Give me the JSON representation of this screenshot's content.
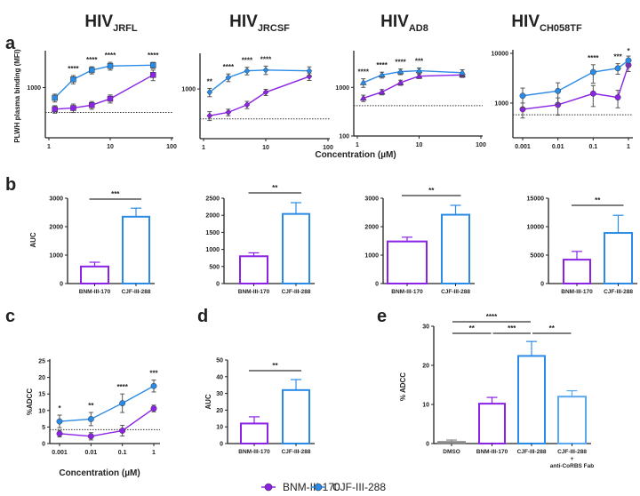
{
  "figure": {
    "panel_labels": {
      "a": "a",
      "b": "b",
      "c": "c",
      "d": "d",
      "e": "e"
    },
    "a_xlabel": "Concentration (µM)",
    "c_xlabel": "Concentration (µM)",
    "legend": [
      {
        "name": "BNM-III-170",
        "color": "#8b22e6"
      },
      {
        "name": "CJF-III-288",
        "color": "#2a8be6"
      }
    ]
  },
  "chart_data": [
    {
      "id": "a-jrfl",
      "type": "line",
      "title_main": "HIV",
      "title_sub": "JRFL",
      "ylabel": "PLWH plasma binding (MFI)",
      "xscale": "log",
      "yscale": "log",
      "xlim": [
        1,
        100
      ],
      "ylim": [
        200,
        3000
      ],
      "xticks": [
        1,
        10,
        100
      ],
      "yticks": [
        1000
      ],
      "threshold": 450,
      "x": [
        1.25,
        2.5,
        5,
        10,
        50
      ],
      "series": [
        {
          "name": "BNM-III-170",
          "values": [
            500,
            520,
            570,
            700,
            1500
          ],
          "err": [
            60,
            70,
            70,
            90,
            250
          ]
        },
        {
          "name": "CJF-III-288",
          "values": [
            720,
            1300,
            1750,
            2000,
            2050
          ],
          "err": [
            90,
            170,
            200,
            250,
            200
          ]
        }
      ],
      "significance": [
        "",
        "****",
        "****",
        "****",
        "****"
      ]
    },
    {
      "id": "a-jrcsf",
      "type": "line",
      "title_main": "HIV",
      "title_sub": "JRCSF",
      "ylabel": "",
      "xscale": "log",
      "yscale": "log",
      "xlim": [
        1,
        100
      ],
      "ylim": [
        200,
        3000
      ],
      "xticks": [
        1,
        10,
        100
      ],
      "yticks": [
        1000
      ],
      "threshold": 380,
      "x": [
        1.25,
        2.5,
        5,
        10,
        50
      ],
      "series": [
        {
          "name": "BNM-III-170",
          "values": [
            420,
            470,
            600,
            900,
            1500
          ],
          "err": [
            60,
            50,
            70,
            90,
            180
          ]
        },
        {
          "name": "CJF-III-288",
          "values": [
            900,
            1450,
            1800,
            1850,
            1800
          ],
          "err": [
            120,
            180,
            220,
            250,
            250
          ]
        }
      ],
      "significance": [
        "**",
        "****",
        "****",
        "****",
        ""
      ]
    },
    {
      "id": "a-ad8",
      "type": "line",
      "title_main": "HIV",
      "title_sub": "AD8",
      "ylabel": "",
      "xscale": "log",
      "yscale": "log",
      "xlim": [
        1,
        100
      ],
      "ylim": [
        100,
        5000
      ],
      "xticks": [
        1,
        10,
        100
      ],
      "yticks": [
        100,
        1000
      ],
      "threshold": 420,
      "x": [
        1.25,
        2.5,
        5,
        10,
        50
      ],
      "series": [
        {
          "name": "BNM-III-170",
          "values": [
            600,
            800,
            1250,
            1700,
            1800
          ],
          "err": [
            90,
            100,
            150,
            180,
            200
          ]
        },
        {
          "name": "CJF-III-288",
          "values": [
            1250,
            1800,
            2100,
            2200,
            2000
          ],
          "err": [
            250,
            250,
            280,
            300,
            300
          ]
        }
      ],
      "significance": [
        "****",
        "****",
        "****",
        "***",
        ""
      ]
    },
    {
      "id": "a-ch058tf",
      "type": "line",
      "title_main": "HIV",
      "title_sub": "CH058TF",
      "ylabel": "",
      "xscale": "log",
      "yscale": "log",
      "xlim": [
        0.001,
        1
      ],
      "ylim": [
        200,
        10000
      ],
      "xticks": [
        0.001,
        0.01,
        0.1,
        1
      ],
      "yticks": [
        1000,
        10000
      ],
      "threshold": 580,
      "x": [
        0.001,
        0.01,
        0.1,
        0.5,
        1
      ],
      "series": [
        {
          "name": "BNM-III-170",
          "values": [
            750,
            920,
            1550,
            1300,
            5800
          ],
          "err": [
            250,
            350,
            700,
            500,
            1500
          ]
        },
        {
          "name": "CJF-III-288",
          "values": [
            1400,
            1750,
            4200,
            5000,
            7200
          ],
          "err": [
            600,
            800,
            1700,
            1200,
            1600
          ]
        }
      ],
      "significance": [
        "",
        "",
        "****",
        "***",
        "*"
      ]
    },
    {
      "id": "b-jrfl",
      "type": "bar",
      "ylabel": "AUC",
      "categories": [
        "BNM-III-170",
        "CJF-III-288"
      ],
      "values": [
        600,
        2350
      ],
      "err": [
        150,
        300
      ],
      "ylim": [
        0,
        3000
      ],
      "yticks": [
        0,
        1000,
        2000,
        3000
      ],
      "colors": [
        "#8b22e6",
        "#2a8be6"
      ],
      "comparisons": [
        {
          "from": 0,
          "to": 1,
          "label": "***"
        }
      ]
    },
    {
      "id": "b-jrcsf",
      "type": "bar",
      "ylabel": "",
      "categories": [
        "BNM-III-170",
        "CJF-III-288"
      ],
      "values": [
        800,
        2040
      ],
      "err": [
        100,
        330
      ],
      "ylim": [
        0,
        2500
      ],
      "yticks": [
        0,
        500,
        1000,
        1500,
        2000,
        2500
      ],
      "colors": [
        "#8b22e6",
        "#2a8be6"
      ],
      "comparisons": [
        {
          "from": 0,
          "to": 1,
          "label": "**"
        }
      ]
    },
    {
      "id": "b-ad8",
      "type": "bar",
      "ylabel": "",
      "categories": [
        "BNM-III-170",
        "CJF-III-288"
      ],
      "values": [
        1480,
        2420
      ],
      "err": [
        150,
        330
      ],
      "ylim": [
        0,
        3000
      ],
      "yticks": [
        0,
        1000,
        2000,
        3000
      ],
      "colors": [
        "#8b22e6",
        "#2a8be6"
      ],
      "comparisons": [
        {
          "from": 0,
          "to": 1,
          "label": "**"
        }
      ]
    },
    {
      "id": "b-ch058tf",
      "type": "bar",
      "ylabel": "",
      "categories": [
        "BNM-III-170",
        "CJF-III-288"
      ],
      "values": [
        4200,
        8900
      ],
      "err": [
        1450,
        3100
      ],
      "ylim": [
        0,
        15000
      ],
      "yticks": [
        0,
        5000,
        10000,
        15000
      ],
      "colors": [
        "#8b22e6",
        "#2a8be6"
      ],
      "comparisons": [
        {
          "from": 0,
          "to": 1,
          "label": "**"
        }
      ]
    },
    {
      "id": "c-adcc",
      "type": "line",
      "title_main": "",
      "title_sub": "",
      "ylabel": "%ADCC",
      "xscale": "log",
      "yscale": "linear",
      "xlim": [
        0.001,
        1
      ],
      "ylim": [
        0,
        25
      ],
      "xticks": [
        0.001,
        0.01,
        0.1,
        1
      ],
      "yticks": [
        0,
        5,
        10,
        15,
        20,
        25
      ],
      "threshold": 4.2,
      "x": [
        0.001,
        0.01,
        0.1,
        1
      ],
      "series": [
        {
          "name": "BNM-III-170",
          "values": [
            3.0,
            2.2,
            3.9,
            10.6
          ],
          "err": [
            1.0,
            1.1,
            1.6,
            1.0
          ]
        },
        {
          "name": "CJF-III-288",
          "values": [
            6.7,
            7.4,
            12.2,
            17.4
          ],
          "err": [
            1.9,
            2.0,
            2.8,
            1.8
          ]
        }
      ],
      "significance": [
        "*",
        "**",
        "****",
        "***"
      ]
    },
    {
      "id": "d-auc",
      "type": "bar",
      "ylabel": "AUC",
      "categories": [
        "BNM-III-170",
        "CJF-III-288"
      ],
      "values": [
        12,
        32
      ],
      "err": [
        4,
        6.3
      ],
      "ylim": [
        0,
        50
      ],
      "yticks": [
        0,
        10,
        20,
        30,
        40,
        50
      ],
      "colors": [
        "#8b22e6",
        "#2a8be6"
      ],
      "comparisons": [
        {
          "from": 0,
          "to": 1,
          "label": "**"
        }
      ]
    },
    {
      "id": "e-adcc",
      "type": "bar",
      "ylabel": "% ADCC",
      "categories": [
        "DMSO",
        "BNM-III-170",
        "CJF-III-288",
        "CJF-III-288"
      ],
      "category_note": [
        "+",
        "anti-CoRBS Fab"
      ],
      "values": [
        0.4,
        10.2,
        22.4,
        12.0
      ],
      "err": [
        0.5,
        1.6,
        3.7,
        1.5
      ],
      "ylim": [
        0,
        30
      ],
      "yticks": [
        0,
        10,
        20,
        30
      ],
      "colors": [
        "#888888",
        "#8b22e6",
        "#2a8be6",
        "#5aa8f0"
      ],
      "comparisons": [
        {
          "from": 0,
          "to": 2,
          "label": "****"
        },
        {
          "from": 0,
          "to": 1,
          "label": "**"
        },
        {
          "from": 1,
          "to": 2,
          "label": "***"
        },
        {
          "from": 2,
          "to": 3,
          "label": "**"
        }
      ]
    }
  ]
}
